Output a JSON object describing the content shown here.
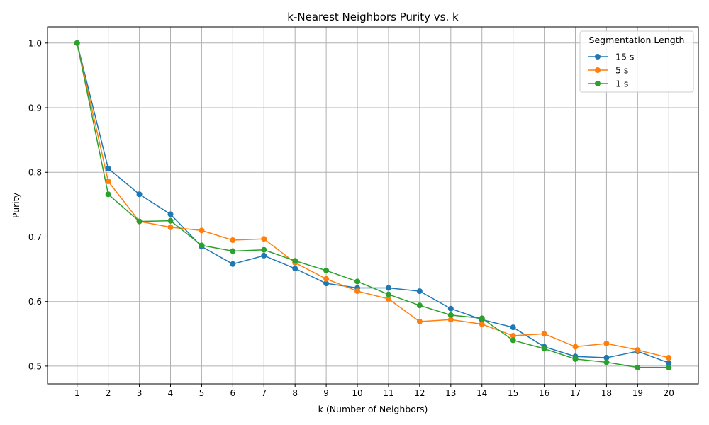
{
  "chart_data": {
    "type": "line",
    "title": "k-Nearest Neighbors Purity vs. k",
    "xlabel": "k (Number of Neighbors)",
    "ylabel": "Purity",
    "x": [
      1,
      2,
      3,
      4,
      5,
      6,
      7,
      8,
      9,
      10,
      11,
      12,
      13,
      14,
      15,
      16,
      17,
      18,
      19,
      20
    ],
    "xlim": [
      0.05,
      20.95
    ],
    "ylim": [
      0.4725,
      1.025
    ],
    "yticks": [
      0.5,
      0.6,
      0.7,
      0.8,
      0.9,
      1.0
    ],
    "ytick_labels": [
      "0.5",
      "0.6",
      "0.7",
      "0.8",
      "0.9",
      "1.0"
    ],
    "grid": true,
    "legend": {
      "title": "Segmentation Length",
      "placement": "top-right"
    },
    "series": [
      {
        "name": "15 s",
        "color": "#1f77b4",
        "values": [
          1.0,
          0.806,
          0.766,
          0.735,
          0.685,
          0.658,
          0.671,
          0.651,
          0.628,
          0.621,
          0.621,
          0.616,
          0.589,
          0.572,
          0.56,
          0.53,
          0.515,
          0.513,
          0.523,
          0.505
        ]
      },
      {
        "name": "5 s",
        "color": "#ff7f0e",
        "values": [
          1.0,
          0.786,
          0.724,
          0.715,
          0.71,
          0.695,
          0.697,
          0.66,
          0.635,
          0.616,
          0.604,
          0.569,
          0.572,
          0.565,
          0.547,
          0.55,
          0.53,
          0.535,
          0.525,
          0.513
        ]
      },
      {
        "name": "1 s",
        "color": "#2ca02c",
        "values": [
          1.0,
          0.766,
          0.724,
          0.725,
          0.687,
          0.678,
          0.68,
          0.663,
          0.648,
          0.631,
          0.611,
          0.594,
          0.579,
          0.574,
          0.54,
          0.527,
          0.511,
          0.506,
          0.498,
          0.498
        ]
      }
    ]
  }
}
